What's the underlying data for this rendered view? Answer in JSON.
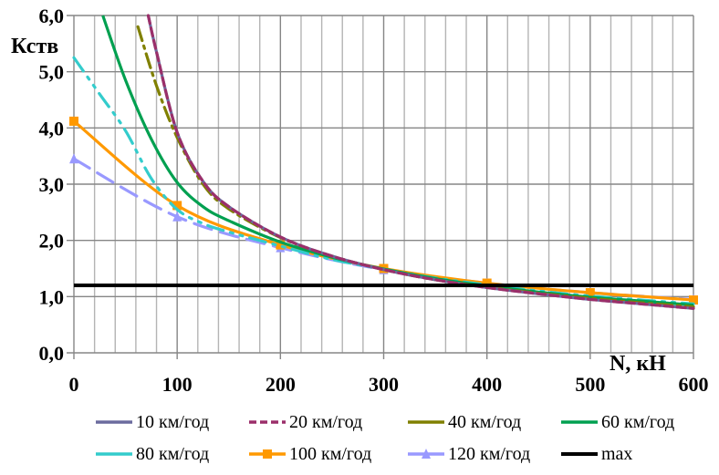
{
  "chart_data": {
    "type": "line",
    "title": "",
    "xlabel": "N, кН",
    "ylabel": "Кств",
    "xlim": [
      0,
      600
    ],
    "ylim": [
      0,
      6
    ],
    "x_ticks": [
      "0",
      "100",
      "200",
      "300",
      "400",
      "500",
      "600"
    ],
    "x_tick_values": [
      0,
      100,
      200,
      300,
      400,
      500,
      600
    ],
    "y_ticks": [
      "0,0",
      "1,0",
      "2,0",
      "3,0",
      "4,0",
      "5,0",
      "6,0"
    ],
    "y_tick_values": [
      0,
      1,
      2,
      3,
      4,
      5,
      6
    ],
    "x_minor_step": 20,
    "grid": true,
    "legend_position": "bottom",
    "series": [
      {
        "name": "10 км/год",
        "color": "#6B6B9E",
        "dash": "solid",
        "marker": "none",
        "x": [
          72,
          80,
          100,
          125,
          150,
          200,
          250,
          300,
          350,
          400,
          450,
          500,
          550,
          600
        ],
        "y": [
          6.0,
          5.35,
          3.92,
          3.05,
          2.6,
          2.06,
          1.72,
          1.48,
          1.3,
          1.16,
          1.05,
          0.95,
          0.87,
          0.79
        ]
      },
      {
        "name": "20 км/год",
        "color": "#9B2F6A",
        "dash": "dash",
        "marker": "none",
        "x": [
          72,
          80,
          100,
          125,
          150,
          200,
          250,
          300,
          350,
          400,
          450,
          500,
          550,
          600
        ],
        "y": [
          6.0,
          5.35,
          3.92,
          3.05,
          2.6,
          2.06,
          1.72,
          1.48,
          1.3,
          1.16,
          1.05,
          0.95,
          0.87,
          0.79
        ]
      },
      {
        "name": "40 км/год",
        "color": "#808000",
        "dash": "dashdot",
        "marker": "none",
        "x": [
          62,
          80,
          100,
          125,
          150,
          200,
          250,
          300,
          350,
          400,
          450,
          500,
          550,
          600
        ],
        "y": [
          5.8,
          4.75,
          3.83,
          3.0,
          2.56,
          2.05,
          1.72,
          1.48,
          1.3,
          1.17,
          1.06,
          0.97,
          0.89,
          0.82
        ]
      },
      {
        "name": "60 км/год",
        "color": "#00A050",
        "dash": "solid",
        "marker": "none",
        "x": [
          28,
          50,
          75,
          100,
          125,
          150,
          200,
          250,
          300,
          350,
          400,
          450,
          500,
          550,
          600
        ],
        "y": [
          6.0,
          4.85,
          3.8,
          3.03,
          2.6,
          2.35,
          1.97,
          1.7,
          1.49,
          1.32,
          1.19,
          1.08,
          0.99,
          0.92,
          0.85
        ]
      },
      {
        "name": "80 км/год",
        "color": "#33CCCC",
        "dash": "dashdotdot",
        "marker": "none",
        "x": [
          0,
          25,
          50,
          75,
          100,
          125,
          150,
          200,
          250,
          300,
          350,
          400,
          450,
          500,
          550,
          600
        ],
        "y": [
          5.25,
          4.6,
          3.95,
          3.1,
          2.55,
          2.3,
          2.15,
          1.9,
          1.66,
          1.49,
          1.33,
          1.21,
          1.1,
          1.01,
          0.94,
          0.87
        ]
      },
      {
        "name": "100 км/год",
        "color": "#FF9900",
        "dash": "solid",
        "marker": "square",
        "x": [
          0,
          100,
          200,
          300,
          400,
          500,
          600
        ],
        "y": [
          4.12,
          2.62,
          1.92,
          1.5,
          1.24,
          1.07,
          0.94
        ],
        "marker_x": [
          0,
          100,
          200,
          300,
          400,
          500,
          600
        ]
      },
      {
        "name": "120 км/год",
        "color": "#9999FF",
        "dash": "longdash",
        "marker": "triangle",
        "x": [
          0,
          100,
          200,
          300,
          400,
          500,
          600
        ],
        "y": [
          3.45,
          2.42,
          1.87,
          1.48,
          1.24,
          1.07,
          0.95
        ],
        "marker_x": [
          0,
          100,
          200,
          300,
          400,
          500,
          600
        ]
      },
      {
        "name": "max",
        "color": "#000000",
        "dash": "solid",
        "marker": "none",
        "x": [
          0,
          600
        ],
        "y": [
          1.2,
          1.2
        ]
      }
    ]
  }
}
